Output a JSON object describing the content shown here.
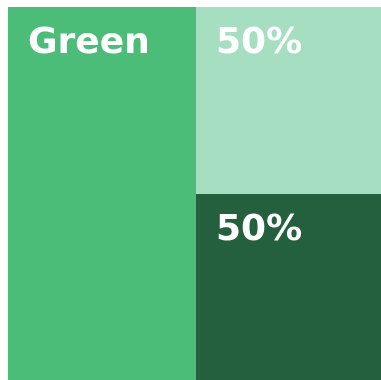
{
  "tiles": [
    {
      "label": "Green",
      "color": "#4cbd79"
    },
    {
      "label": "50%",
      "color": "#a5dec0"
    },
    {
      "label": "50%",
      "color": "#245f3e"
    }
  ]
}
